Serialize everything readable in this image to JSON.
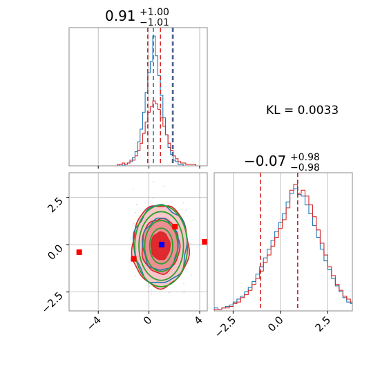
{
  "chart_data": {
    "type": "corner",
    "parameters": 2,
    "colors": {
      "blue": "#1f77b4",
      "red": "#d62728",
      "green": "#2ca02c",
      "marker_blue": "#0000ff",
      "marker_red": "#ff0000"
    },
    "kl_text": "KL = 0.0033",
    "param1": {
      "title_value": "0.91",
      "title_plus": "+1.00",
      "title_minus": "−1.01",
      "range": [
        -6.3,
        4.6
      ],
      "ticks": [
        -4,
        0,
        4
      ],
      "tick_labels": [
        "−4",
        "0",
        "4"
      ],
      "quantile_lines_red": [
        -0.1,
        0.91,
        1.91
      ],
      "quantile_lines_blue": [
        0.35,
        1.85
      ],
      "hist_red": {
        "start": -2.5,
        "width": 0.2,
        "values": [
          1,
          1,
          2,
          1,
          2,
          4,
          4,
          7,
          11,
          16,
          23,
          31,
          38,
          42,
          46,
          44,
          40,
          34,
          28,
          22,
          16,
          11,
          7,
          5,
          3,
          2,
          2,
          1,
          1,
          1,
          1
        ]
      },
      "hist_blue": {
        "start": -2.3,
        "width": 0.2,
        "values": [
          1,
          0,
          1,
          2,
          3,
          6,
          10,
          17,
          26,
          38,
          52,
          66,
          74,
          92,
          78,
          64,
          50,
          34,
          22,
          13,
          8,
          4,
          3,
          1,
          1
        ]
      }
    },
    "param2": {
      "title_value": "−0.07",
      "title_plus": "+0.98",
      "title_minus": "−0.98",
      "range": [
        -3.5,
        3.8
      ],
      "ticks": [
        -2.5,
        0.0,
        2.5
      ],
      "tick_labels": [
        "−2.5",
        "0.0",
        "2.5"
      ],
      "quantile_lines_red": [
        -1.05,
        0.91
      ],
      "quantile_lines_blue": [
        0.91
      ],
      "hist_red": {
        "start": -3.5,
        "width": 0.2,
        "values": [
          1,
          1,
          2,
          2,
          3,
          5,
          6,
          9,
          11,
          14,
          18,
          22,
          27,
          33,
          38,
          44,
          50,
          56,
          62,
          70,
          82,
          86,
          80,
          82,
          78,
          72,
          64,
          55,
          46,
          38,
          30,
          24,
          18,
          14,
          10,
          8,
          6,
          4,
          3,
          2,
          2,
          1,
          1
        ]
      },
      "hist_blue": {
        "start": -3.5,
        "width": 0.2,
        "values": [
          2,
          1,
          2,
          3,
          4,
          6,
          8,
          10,
          13,
          16,
          20,
          25,
          30,
          36,
          42,
          48,
          54,
          60,
          66,
          74,
          80,
          83,
          79,
          78,
          72,
          66,
          58,
          50,
          42,
          34,
          28,
          22,
          17,
          13,
          9,
          6,
          5,
          3,
          2,
          2,
          1,
          1,
          1
        ]
      }
    },
    "scatter_markers_red": [
      {
        "x": -5.5,
        "y": -0.4
      },
      {
        "x": -1.2,
        "y": -0.75
      },
      {
        "x": 2.05,
        "y": 0.95
      },
      {
        "x": 4.4,
        "y": 0.15
      }
    ],
    "scatter_marker_blue": {
      "x": 1.0,
      "y": 0.0
    },
    "contours": {
      "center": [
        0.91,
        -0.07
      ],
      "red_filled_sigmas": [
        1.5,
        1.0,
        0.5
      ],
      "std": [
        1.0,
        0.98
      ]
    }
  }
}
